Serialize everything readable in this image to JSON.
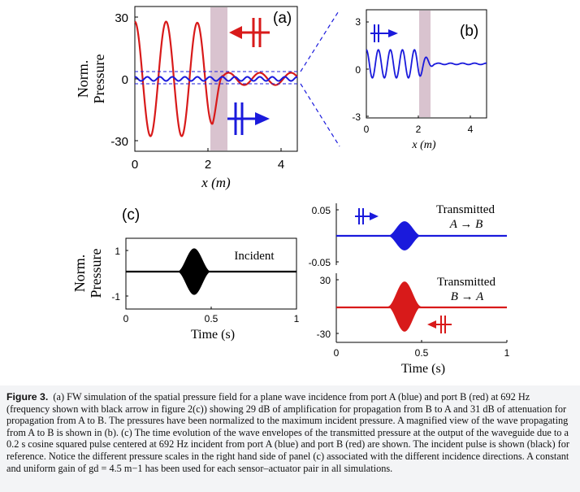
{
  "figure": {
    "panel_a": {
      "label": "(a)",
      "ylabel": [
        "Norm.",
        "Pressure"
      ],
      "xlabel": "x (m)",
      "yticks": [
        "30",
        "0",
        "-30"
      ],
      "xticks": [
        "0",
        "2",
        "4"
      ]
    },
    "panel_b": {
      "label": "(b)",
      "xlabel": "x (m)",
      "yticks": [
        "3",
        "0",
        "-3"
      ],
      "xticks": [
        "0",
        "2",
        "4"
      ]
    },
    "panel_c": {
      "label": "(c)",
      "left": {
        "ylabel": [
          "Norm.",
          "Pressure"
        ],
        "xlabel": "Time (s)",
        "yticks": [
          "1",
          "-1"
        ],
        "xticks": [
          "0",
          "0.5",
          "1"
        ],
        "annotation": "Incident"
      },
      "right_top": {
        "yticks": [
          "0.05",
          "-0.05"
        ],
        "annotation": [
          "Transmitted",
          "A → B"
        ]
      },
      "right_bottom": {
        "yticks": [
          "30",
          "-30"
        ],
        "xticks": [
          "0",
          "0.5",
          "1"
        ],
        "xlabel": "Time (s)",
        "annotation": [
          "Transmitted",
          "B → A"
        ]
      }
    },
    "colors": {
      "port_a": "#1a1adc",
      "port_b": "#d81a1a",
      "incident": "#000000",
      "highlight": "#d9c3cf"
    }
  },
  "chart_data": [
    {
      "type": "line",
      "panel": "(a)",
      "xlabel": "x (m)",
      "ylabel": "Norm. Pressure",
      "xlim": [
        0,
        4.6
      ],
      "ylim": [
        -35,
        35
      ],
      "series": [
        {
          "color": "red",
          "description_points_x": [
            0,
            0.5,
            1.0,
            1.5,
            2.0,
            2.2,
            2.5,
            3.0,
            4.0,
            4.5
          ],
          "envelope": [
            28,
            28,
            28,
            28,
            27,
            22,
            3,
            3,
            3,
            3
          ]
        },
        {
          "color": "blue",
          "description_points_x": [
            0,
            1.0,
            2.0,
            2.2,
            2.5,
            3.0,
            4.0,
            4.5
          ],
          "envelope": [
            1,
            1,
            1,
            1,
            1,
            1,
            1,
            1
          ]
        }
      ],
      "highlight_x": [
        2.1,
        2.5
      ]
    },
    {
      "type": "line",
      "panel": "(b)",
      "xlabel": "x (m)",
      "xlim": [
        0,
        4.6
      ],
      "ylim": [
        -3,
        3
      ],
      "series": [
        {
          "color": "blue",
          "description_points_x": [
            0,
            1.0,
            2.0,
            2.2,
            2.6,
            4.5
          ],
          "envelope": [
            1,
            1,
            1,
            0.6,
            0.05,
            0.05
          ]
        }
      ],
      "highlight_x": [
        2.1,
        2.5
      ]
    },
    {
      "type": "area",
      "panel": "(c) Incident",
      "xlabel": "Time (s)",
      "xlim": [
        0,
        1
      ],
      "ylim": [
        -1.4,
        1.4
      ],
      "series": [
        {
          "color": "black",
          "pulse_center": 0.4,
          "pulse_width": 0.2,
          "amplitude": 1
        }
      ]
    },
    {
      "type": "area",
      "panel": "(c) Transmitted A → B",
      "xlim": [
        0,
        1
      ],
      "ylim": [
        -0.05,
        0.05
      ],
      "series": [
        {
          "color": "blue",
          "pulse_center": 0.4,
          "pulse_width": 0.2,
          "amplitude": 0.028
        }
      ]
    },
    {
      "type": "area",
      "panel": "(c) Transmitted B → A",
      "xlabel": "Time (s)",
      "xlim": [
        0,
        1
      ],
      "ylim": [
        -30,
        30
      ],
      "series": [
        {
          "color": "red",
          "pulse_center": 0.4,
          "pulse_width": 0.2,
          "amplitude": 28
        }
      ]
    }
  ],
  "caption": {
    "label": "Figure 3.",
    "text": "(a) FW simulation of the spatial pressure field for a plane wave incidence from port A (blue) and port B (red) at 692 Hz (frequency shown with black arrow in figure 2(c)) showing 29 dB of amplification for propagation from B to A and 31 dB of attenuation for propagation from A to B. The pressures have been normalized to the maximum incident pressure. A magnified view of the wave propagating from A to B is shown in (b). (c) The time evolution of the wave envelopes of the transmitted pressure at the output of the waveguide due to a 0.2 s cosine squared pulse centered at 692 Hz incident from port A (blue) and port B (red) are shown. The incident pulse is shown (black) for reference. Notice the different pressure scales in the right hand side of panel (c) associated with the different incidence directions. A constant and uniform gain of gd = 4.5 m−1 has been used for each sensor–actuator pair in all simulations."
  }
}
